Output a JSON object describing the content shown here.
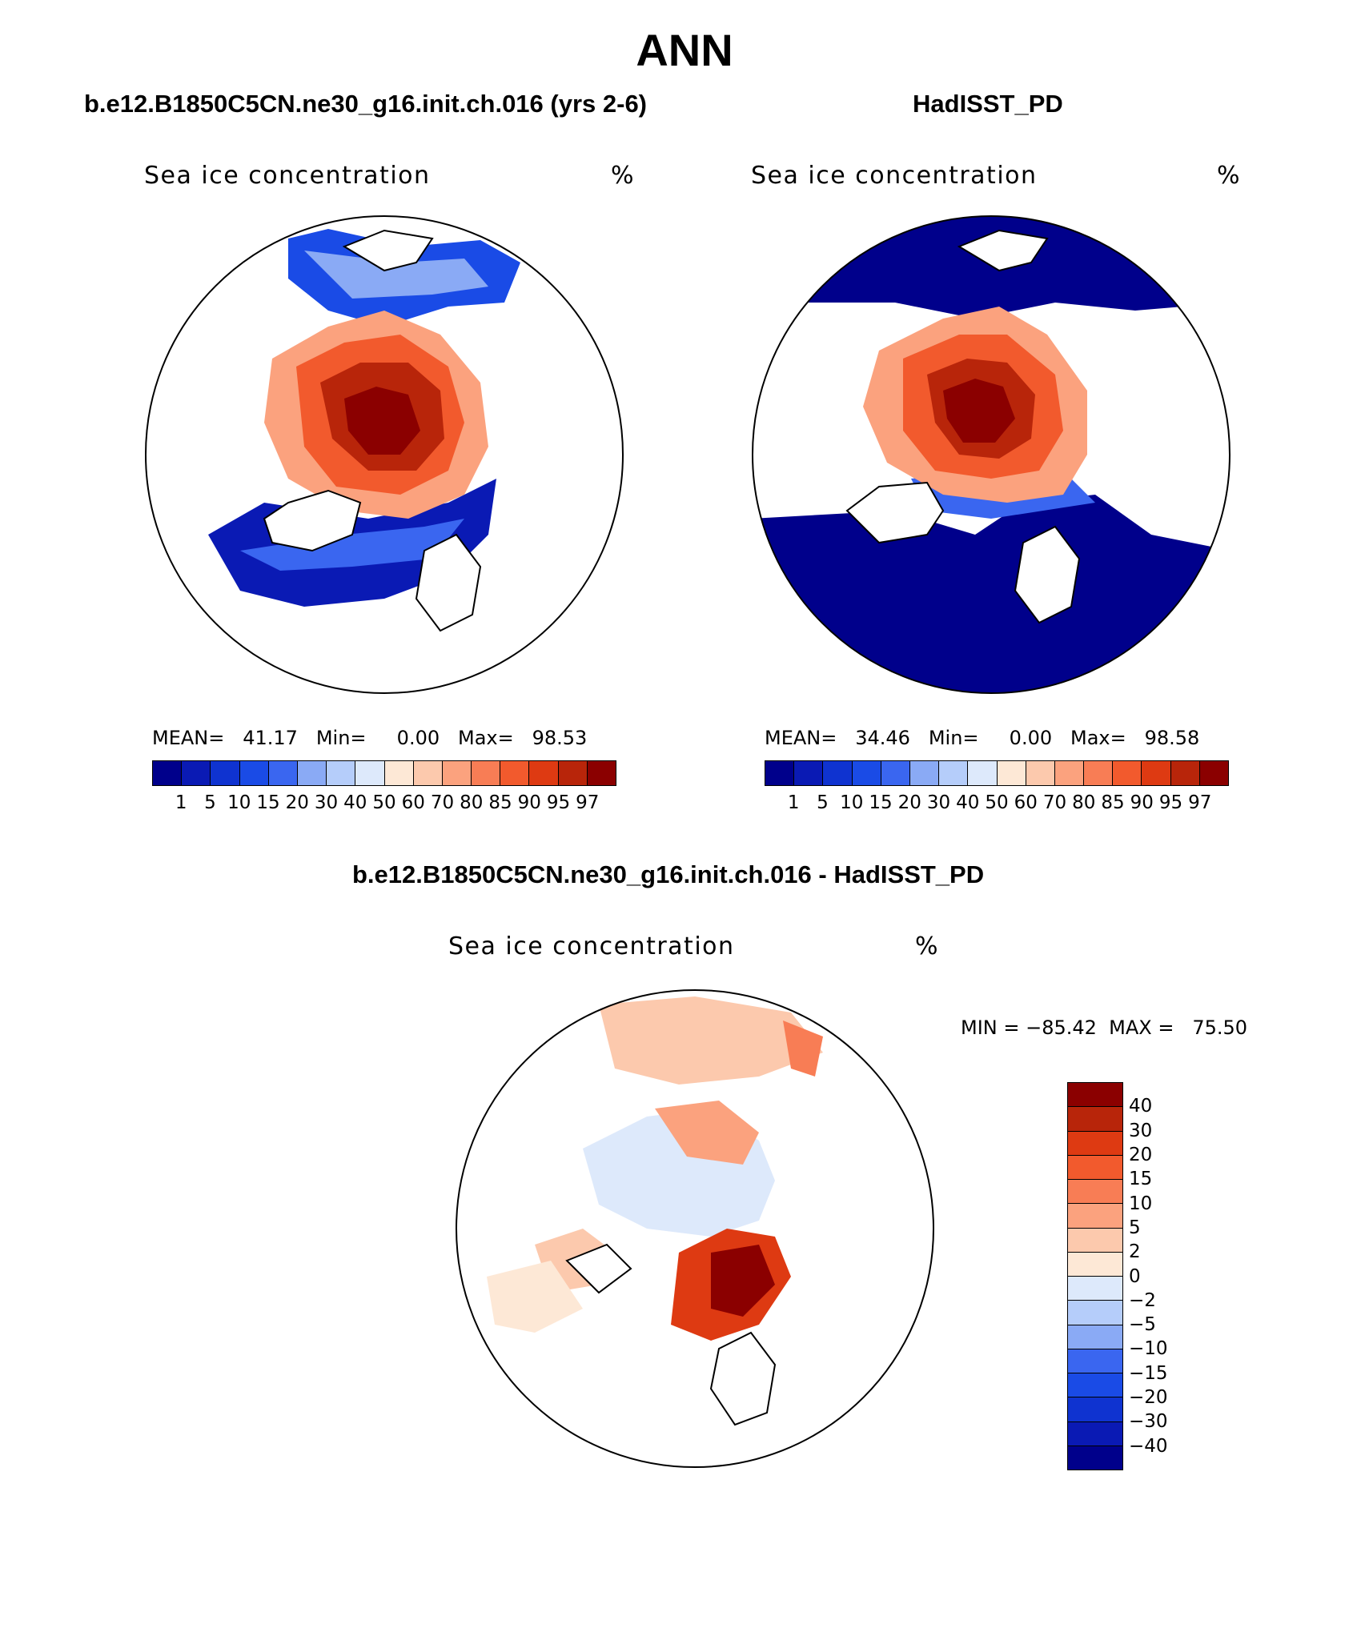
{
  "main_title": "ANN",
  "panels": [
    {
      "title": "b.e12.B1850C5CN.ne30_g16.init.ch.016 (yrs 2-6)",
      "label_left": "Sea ice concentration",
      "label_right": "%",
      "stats": "MEAN=   41.17   Min=     0.00   Max=   98.53"
    },
    {
      "title": "HadISST_PD",
      "label_left": "Sea ice concentration",
      "label_right": "%",
      "stats": "MEAN=   34.46   Min=     0.00   Max=   98.58"
    },
    {
      "title": "b.e12.B1850C5CN.ne30_g16.init.ch.016 - HadISST_PD",
      "label_left": "Sea ice concentration",
      "label_right": "%",
      "stats": "MIN = −85.42  MAX =   75.50"
    }
  ],
  "colorbar_abs": {
    "labels": [
      "1",
      "5",
      "10",
      "15",
      "20",
      "30",
      "40",
      "50",
      "60",
      "70",
      "80",
      "85",
      "90",
      "95",
      "97"
    ],
    "colors": [
      "#00008b",
      "#0a1ab4",
      "#0f33d0",
      "#1a4be6",
      "#3a66f0",
      "#8aaaf5",
      "#b5cdfa",
      "#dde9fb",
      "#fde8d6",
      "#fcc9ad",
      "#fba27e",
      "#f87d55",
      "#f25a2d",
      "#de3a12",
      "#b8250a",
      "#8b0000"
    ]
  },
  "colorbar_diff": {
    "labels": [
      "40",
      "30",
      "20",
      "15",
      "10",
      "5",
      "2",
      "0",
      "−2",
      "−5",
      "−10",
      "−15",
      "−20",
      "−30",
      "−40"
    ],
    "colors": [
      "#8b0000",
      "#b8250a",
      "#de3a12",
      "#f25a2d",
      "#f87d55",
      "#fba27e",
      "#fcc9ad",
      "#fde8d6",
      "#dde9fb",
      "#b5cdfa",
      "#8aaaf5",
      "#3a66f0",
      "#1a4be6",
      "#0f33d0",
      "#0a1ab4",
      "#00008b"
    ]
  }
}
